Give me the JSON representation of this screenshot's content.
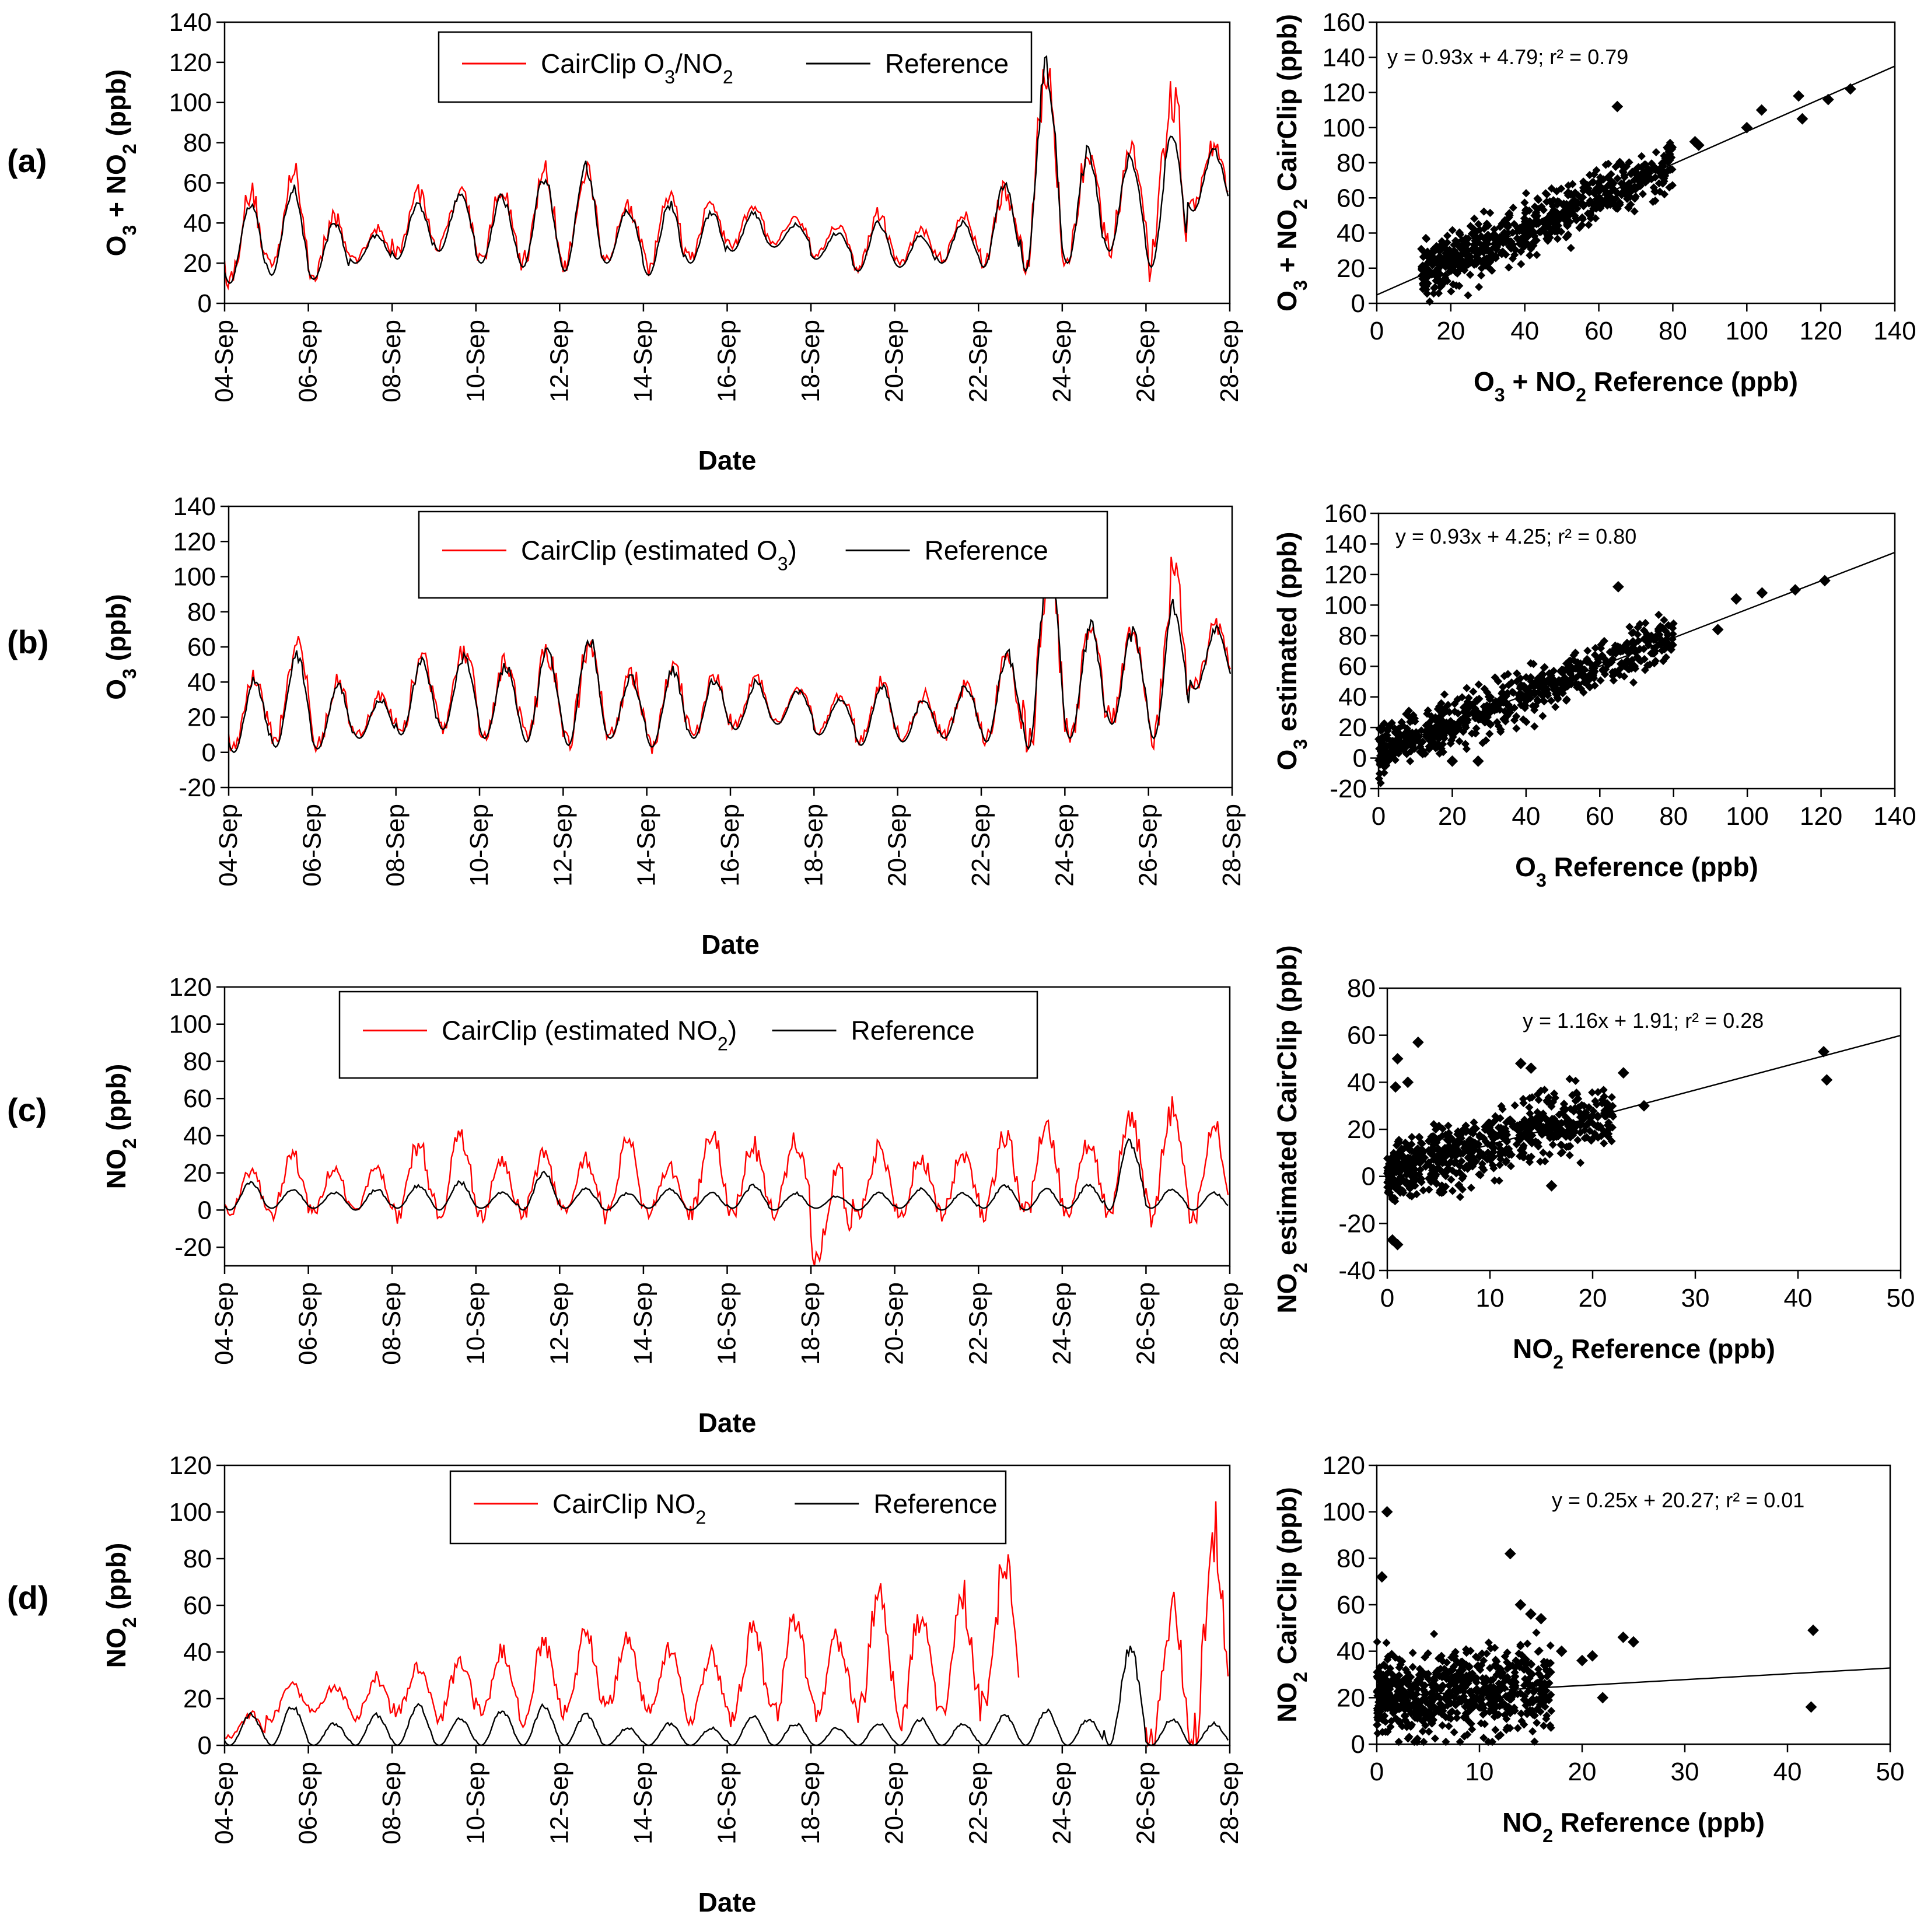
{
  "panels": [
    {
      "id": "a",
      "letter": "(a)",
      "ts": {
        "type": "line",
        "ylabel": "O3 + NO2 (ppb)",
        "xlabel": "Date",
        "ylim": [
          0,
          140
        ],
        "yticks": [
          0,
          20,
          40,
          60,
          80,
          100,
          120,
          140
        ],
        "date_range": [
          "04-Sep",
          "28-Sep"
        ],
        "xticks": [
          "04-Sep",
          "06-Sep",
          "08-Sep",
          "10-Sep",
          "12-Sep",
          "14-Sep",
          "16-Sep",
          "18-Sep",
          "20-Sep",
          "22-Sep",
          "24-Sep",
          "26-Sep",
          "28-Sep"
        ],
        "legend": [
          "CairClip O3/NO2",
          "Reference"
        ],
        "series": [
          {
            "name": "CairClip O3/NO2",
            "color": "#ff0000",
            "daily_min": [
              12,
              18,
              14,
              22,
              25,
              28,
              22,
              20,
              18,
              22,
              17,
              22,
              28,
              30,
              24,
              18,
              20,
              22,
              20,
              18,
              22,
              28,
              20,
              48,
              35
            ],
            "daily_max": [
              56,
              68,
              46,
              38,
              58,
              60,
              58,
              68,
              70,
              52,
              58,
              52,
              50,
              44,
              40,
              46,
              38,
              46,
              60,
              122,
              82,
              78,
              112,
              80,
              70
            ]
          },
          {
            "name": "Reference",
            "color": "#000000",
            "daily_min": [
              10,
              14,
              12,
              20,
              22,
              26,
              20,
              18,
              16,
              20,
              14,
              20,
              26,
              28,
              22,
              16,
              18,
              20,
              18,
              16,
              20,
              26,
              18,
              46,
              33
            ],
            "daily_max": [
              52,
              60,
              42,
              35,
              52,
              56,
              55,
              66,
              72,
              48,
              52,
              48,
              46,
              40,
              36,
              42,
              35,
              42,
              62,
              125,
              80,
              76,
              90,
              78,
              68
            ]
          }
        ]
      },
      "scatter": {
        "type": "scatter",
        "xlabel": "O3 + NO2 Reference (ppb)",
        "ylabel": "O3 + NO2 CairClip (ppb)",
        "xlim": [
          0,
          140
        ],
        "ylim": [
          0,
          160
        ],
        "xticks": [
          0,
          20,
          40,
          60,
          80,
          100,
          120,
          140
        ],
        "yticks": [
          0,
          20,
          40,
          60,
          80,
          100,
          120,
          140,
          160
        ],
        "equation": "y = 0.93x + 4.79; r² = 0.79",
        "fit": {
          "slope": 0.93,
          "intercept": 4.79
        },
        "cloud": {
          "x_range": [
            12,
            80
          ],
          "y_jitter": 14
        },
        "extra_points": [
          [
            65,
            112
          ],
          [
            100,
            100
          ],
          [
            104,
            110
          ],
          [
            114,
            118
          ],
          [
            115,
            105
          ],
          [
            122,
            116
          ],
          [
            128,
            122
          ],
          [
            87,
            90
          ],
          [
            86,
            92
          ]
        ]
      }
    },
    {
      "id": "b",
      "letter": "(b)",
      "ts": {
        "type": "line",
        "ylabel": "O3 (ppb)",
        "xlabel": "Date",
        "ylim": [
          -20,
          140
        ],
        "yticks": [
          -20,
          0,
          20,
          40,
          60,
          80,
          100,
          120,
          140
        ],
        "date_range": [
          "04-Sep",
          "28-Sep"
        ],
        "xticks": [
          "04-Sep",
          "06-Sep",
          "08-Sep",
          "10-Sep",
          "12-Sep",
          "14-Sep",
          "16-Sep",
          "18-Sep",
          "20-Sep",
          "22-Sep",
          "24-Sep",
          "26-Sep",
          "28-Sep"
        ],
        "legend": [
          "CairClip (estimated O3)",
          "Reference"
        ],
        "series": [
          {
            "name": "CairClip (estimated O3)",
            "color": "#ff0000",
            "daily_min": [
              2,
              5,
              4,
              10,
              12,
              15,
              10,
              8,
              6,
              10,
              5,
              10,
              15,
              18,
              12,
              6,
              8,
              10,
              8,
              4,
              10,
              18,
              10,
              38,
              25
            ],
            "daily_max": [
              46,
              68,
              42,
              34,
              60,
              62,
              54,
              62,
              66,
              48,
              54,
              48,
              44,
              38,
              34,
              42,
              34,
              42,
              58,
              116,
              76,
              72,
              110,
              76,
              64
            ]
          },
          {
            "name": "Reference",
            "color": "#000000",
            "daily_min": [
              0,
              3,
              2,
              8,
              10,
              13,
              8,
              6,
              4,
              8,
              3,
              8,
              13,
              16,
              10,
              4,
              6,
              8,
              6,
              2,
              8,
              16,
              8,
              36,
              23
            ],
            "daily_max": [
              44,
              60,
              40,
              32,
              55,
              58,
              52,
              62,
              70,
              45,
              50,
              44,
              42,
              36,
              32,
              40,
              32,
              40,
              60,
              118,
              76,
              72,
              90,
              74,
              62
            ]
          }
        ]
      },
      "scatter": {
        "type": "scatter",
        "xlabel": "O3 Reference (ppb)",
        "ylabel": "O3 estimated (ppb)",
        "xlim": [
          0,
          140
        ],
        "ylim": [
          -20,
          160
        ],
        "xticks": [
          0,
          20,
          40,
          60,
          80,
          100,
          120,
          140
        ],
        "yticks": [
          -20,
          0,
          20,
          40,
          60,
          80,
          100,
          120,
          140,
          160
        ],
        "equation": "y = 0.93x + 4.25; r² = 0.80",
        "fit": {
          "slope": 0.93,
          "intercept": 4.25
        },
        "cloud": {
          "x_range": [
            0,
            80
          ],
          "y_jitter": 14
        },
        "extra_points": [
          [
            65,
            112
          ],
          [
            92,
            84
          ],
          [
            97,
            104
          ],
          [
            104,
            108
          ],
          [
            113,
            110
          ],
          [
            121,
            116
          ],
          [
            20,
            -2
          ],
          [
            27,
            -2
          ]
        ]
      }
    },
    {
      "id": "c",
      "letter": "(c)",
      "ts": {
        "type": "line",
        "ylabel": "NO2 (ppb)",
        "xlabel": "Date",
        "ylim": [
          -30,
          120
        ],
        "yticks": [
          -20,
          0,
          20,
          40,
          60,
          80,
          100,
          120
        ],
        "date_range": [
          "04-Sep",
          "28-Sep"
        ],
        "xticks": [
          "04-Sep",
          "06-Sep",
          "08-Sep",
          "10-Sep",
          "12-Sep",
          "14-Sep",
          "16-Sep",
          "18-Sep",
          "20-Sep",
          "22-Sep",
          "24-Sep",
          "26-Sep",
          "28-Sep"
        ],
        "legend": [
          "CairClip (estimated NO2)",
          "Reference"
        ],
        "series": [
          {
            "name": "CairClip (estimated NO2)",
            "color": "#ff0000",
            "daily_min": [
              -2,
              -3,
              -2,
              -2,
              -3,
              -2,
              -3,
              -2,
              -2,
              -3,
              -2,
              -3,
              -2,
              -2,
              -28,
              -2,
              -3,
              -2,
              -3,
              -2,
              -2,
              -4,
              -3,
              -4,
              -4
            ],
            "daily_max": [
              22,
              32,
              26,
              28,
              38,
              44,
              28,
              32,
              30,
              40,
              26,
              46,
              38,
              42,
              26,
              36,
              32,
              34,
              44,
              50,
              38,
              54,
              56,
              48,
              20
            ]
          },
          {
            "name": "Reference",
            "color": "#000000",
            "daily_min": [
              0,
              1,
              1,
              0,
              1,
              0,
              1,
              0,
              1,
              0,
              1,
              0,
              1,
              0,
              1,
              0,
              1,
              0,
              1,
              0,
              1,
              0,
              1,
              0,
              1
            ],
            "daily_max": [
              16,
              12,
              10,
              12,
              14,
              16,
              10,
              22,
              12,
              10,
              12,
              10,
              14,
              10,
              8,
              10,
              12,
              10,
              14,
              12,
              14,
              40,
              12,
              10,
              8
            ]
          }
        ]
      },
      "scatter": {
        "type": "scatter",
        "xlabel": "NO2 Reference (ppb)",
        "ylabel": "NO2 estimated CairClip (ppb)",
        "xlim": [
          0,
          50
        ],
        "ylim": [
          -40,
          80
        ],
        "xticks": [
          0,
          10,
          20,
          30,
          40,
          50
        ],
        "yticks": [
          -40,
          -20,
          0,
          20,
          40,
          60,
          80
        ],
        "equation": "y = 1.16x + 1.91; r² = 0.28",
        "fit": {
          "slope": 1.16,
          "intercept": 1.91
        },
        "cloud": {
          "x_range": [
            0,
            22
          ],
          "y_jitter": 12
        },
        "extra_points": [
          [
            42.5,
            53
          ],
          [
            42.8,
            41
          ],
          [
            1,
            50
          ],
          [
            3,
            57
          ],
          [
            13,
            48
          ],
          [
            14,
            46
          ],
          [
            0.5,
            -27
          ],
          [
            1,
            -29
          ],
          [
            0.8,
            38
          ],
          [
            2,
            40
          ],
          [
            16,
            -4
          ],
          [
            25,
            30
          ],
          [
            23,
            44
          ]
        ]
      }
    },
    {
      "id": "d",
      "letter": "(d)",
      "ts": {
        "type": "line",
        "ylabel": "NO2 (ppb)",
        "xlabel": "Date",
        "ylim": [
          0,
          120
        ],
        "yticks": [
          0,
          20,
          40,
          60,
          80,
          100,
          120
        ],
        "date_range": [
          "04-Sep",
          "28-Sep"
        ],
        "xticks": [
          "04-Sep",
          "06-Sep",
          "08-Sep",
          "10-Sep",
          "12-Sep",
          "14-Sep",
          "16-Sep",
          "18-Sep",
          "20-Sep",
          "22-Sep",
          "24-Sep",
          "26-Sep",
          "28-Sep"
        ],
        "legend": [
          "CairClip NO2",
          "Reference"
        ],
        "series": [
          {
            "name": "CairClip NO2",
            "color": "#ff0000",
            "daily_min": [
              3,
              12,
              14,
              12,
              14,
              12,
              14,
              12,
              14,
              16,
              14,
              12,
              10,
              12,
              14,
              12,
              10,
              12,
              14,
              null,
              null,
              null,
              2,
              2,
              2
            ],
            "daily_max": [
              14,
              28,
              26,
              30,
              36,
              40,
              42,
              46,
              50,
              48,
              44,
              40,
              54,
              58,
              48,
              70,
              60,
              66,
              82,
              null,
              null,
              42,
              62,
              100,
              40
            ]
          },
          {
            "name": "Reference",
            "color": "#000000",
            "daily_min": [
              0,
              0,
              0,
              0,
              0,
              0,
              0,
              0,
              0,
              0,
              0,
              0,
              0,
              0,
              0,
              0,
              0,
              0,
              0,
              0,
              0,
              0,
              0,
              0,
              0
            ],
            "daily_max": [
              14,
              18,
              10,
              14,
              18,
              12,
              16,
              18,
              14,
              8,
              10,
              8,
              14,
              10,
              8,
              10,
              12,
              10,
              14,
              16,
              12,
              44,
              12,
              10,
              8
            ]
          }
        ]
      },
      "scatter": {
        "type": "scatter",
        "xlabel": "NO2 Reference (ppb)",
        "ylabel": "NO2 CairClip (ppb)",
        "xlim": [
          0,
          50
        ],
        "ylim": [
          0,
          120
        ],
        "xticks": [
          0,
          10,
          20,
          30,
          40,
          50
        ],
        "yticks": [
          0,
          20,
          40,
          60,
          80,
          100,
          120
        ],
        "equation": "y = 0.25x + 20.27; r² = 0.01",
        "fit": {
          "slope": 0.25,
          "intercept": 20.27
        },
        "cloud": {
          "x_range": [
            0,
            17
          ],
          "y_jitter": 16
        },
        "extra_points": [
          [
            1,
            100
          ],
          [
            0.5,
            72
          ],
          [
            13,
            82
          ],
          [
            15,
            56
          ],
          [
            16,
            54
          ],
          [
            14,
            60
          ],
          [
            42.5,
            49
          ],
          [
            42.3,
            16
          ],
          [
            22,
            20
          ],
          [
            24,
            46
          ],
          [
            21,
            38
          ],
          [
            20,
            36
          ],
          [
            25,
            44
          ],
          [
            18,
            40
          ]
        ]
      }
    }
  ]
}
